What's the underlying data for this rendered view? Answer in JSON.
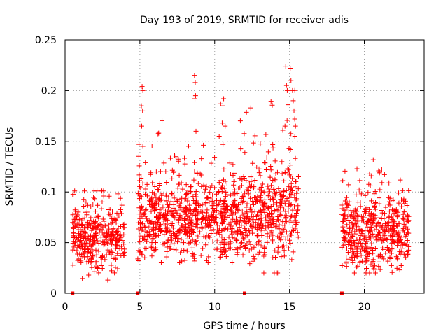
{
  "chart_data": {
    "type": "scatter",
    "title": "Day 193 of 2019, SRMTID for receiver adis",
    "xlabel": "GPS time / hours",
    "ylabel": "SRMTID / TECUs",
    "xlim": [
      0,
      24
    ],
    "ylim": [
      0,
      0.25
    ],
    "x_ticks": [
      0,
      5,
      10,
      15,
      20
    ],
    "x_tick_labels": [
      "0",
      "5",
      "10",
      "15",
      "20"
    ],
    "y_ticks": [
      0,
      0.05,
      0.1,
      0.15,
      0.2,
      0.25
    ],
    "y_tick_labels": [
      "0",
      "0.05",
      "0.1",
      "0.15",
      "0.2",
      "0.25"
    ],
    "grid": true,
    "marker": "+",
    "series_color": "#ff0000",
    "segments": [
      {
        "start": 0.5,
        "end": 4.0,
        "mean": 0.055,
        "spread": 0.015,
        "min": 0.012,
        "max": 0.101
      },
      {
        "start": 4.85,
        "end": 12.0,
        "mean": 0.075,
        "spread": 0.02,
        "min": 0.03,
        "max": 0.215
      },
      {
        "start": 12.0,
        "end": 15.6,
        "mean": 0.08,
        "spread": 0.025,
        "min": 0.02,
        "max": 0.224
      },
      {
        "start": 18.5,
        "end": 23.0,
        "mean": 0.06,
        "spread": 0.018,
        "min": 0.02,
        "max": 0.141
      }
    ],
    "spikes": [
      {
        "x": 5.15,
        "y": 0.204
      },
      {
        "x": 5.2,
        "y": 0.2
      },
      {
        "x": 5.1,
        "y": 0.185
      },
      {
        "x": 5.18,
        "y": 0.18
      },
      {
        "x": 5.12,
        "y": 0.165
      },
      {
        "x": 5.2,
        "y": 0.145
      },
      {
        "x": 8.65,
        "y": 0.215
      },
      {
        "x": 8.7,
        "y": 0.208
      },
      {
        "x": 8.72,
        "y": 0.195
      },
      {
        "x": 8.68,
        "y": 0.192
      },
      {
        "x": 8.75,
        "y": 0.16
      },
      {
        "x": 10.6,
        "y": 0.192
      },
      {
        "x": 10.4,
        "y": 0.187
      },
      {
        "x": 10.55,
        "y": 0.185
      },
      {
        "x": 10.5,
        "y": 0.168
      },
      {
        "x": 10.7,
        "y": 0.165
      },
      {
        "x": 10.3,
        "y": 0.155
      },
      {
        "x": 14.75,
        "y": 0.224
      },
      {
        "x": 15.05,
        "y": 0.222
      },
      {
        "x": 15.1,
        "y": 0.21
      },
      {
        "x": 14.8,
        "y": 0.205
      },
      {
        "x": 14.85,
        "y": 0.2
      },
      {
        "x": 15.2,
        "y": 0.2
      },
      {
        "x": 15.25,
        "y": 0.19
      },
      {
        "x": 15.3,
        "y": 0.18
      },
      {
        "x": 14.9,
        "y": 0.186
      },
      {
        "x": 15.35,
        "y": 0.172
      },
      {
        "x": 15.4,
        "y": 0.165
      },
      {
        "x": 14.7,
        "y": 0.165
      }
    ],
    "baseline_markers": [
      0.5,
      4.85,
      12.0,
      18.5
    ]
  }
}
